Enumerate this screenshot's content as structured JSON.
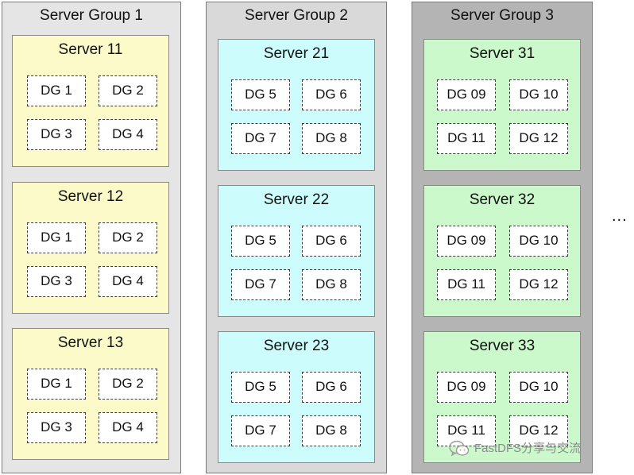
{
  "groups": [
    {
      "title": "Server Group 1",
      "bg": "#e5e5e5",
      "server_bg": "#fcfac8",
      "servers": [
        {
          "title": "Server 11",
          "dgs": [
            "DG 1",
            "DG 2",
            "DG 3",
            "DG 4"
          ]
        },
        {
          "title": "Server 12",
          "dgs": [
            "DG 1",
            "DG 2",
            "DG 3",
            "DG 4"
          ]
        },
        {
          "title": "Server 13",
          "dgs": [
            "DG 1",
            "DG 2",
            "DG 3",
            "DG 4"
          ]
        }
      ]
    },
    {
      "title": "Server Group 2",
      "bg": "#d9d9d9",
      "server_bg": "#ccfcfc",
      "servers": [
        {
          "title": "Server 21",
          "dgs": [
            "DG 5",
            "DG 6",
            "DG 7",
            "DG 8"
          ]
        },
        {
          "title": "Server 22",
          "dgs": [
            "DG 5",
            "DG 6",
            "DG 7",
            "DG 8"
          ]
        },
        {
          "title": "Server 23",
          "dgs": [
            "DG 5",
            "DG 6",
            "DG 7",
            "DG 8"
          ]
        }
      ]
    },
    {
      "title": "Server Group 3",
      "bg": "#b4b4b4",
      "server_bg": "#ccf9cc",
      "servers": [
        {
          "title": "Server 31",
          "dgs": [
            "DG 09",
            "DG 10",
            "DG 11",
            "DG 12"
          ]
        },
        {
          "title": "Server 32",
          "dgs": [
            "DG 09",
            "DG 10",
            "DG 11",
            "DG 12"
          ]
        },
        {
          "title": "Server 33",
          "dgs": [
            "DG 09",
            "DG 10",
            "DG 11",
            "DG 12"
          ]
        }
      ]
    }
  ],
  "ellipsis": "...",
  "watermark": {
    "text": "FastDFS分享与交流",
    "icon": "wechat-icon"
  }
}
